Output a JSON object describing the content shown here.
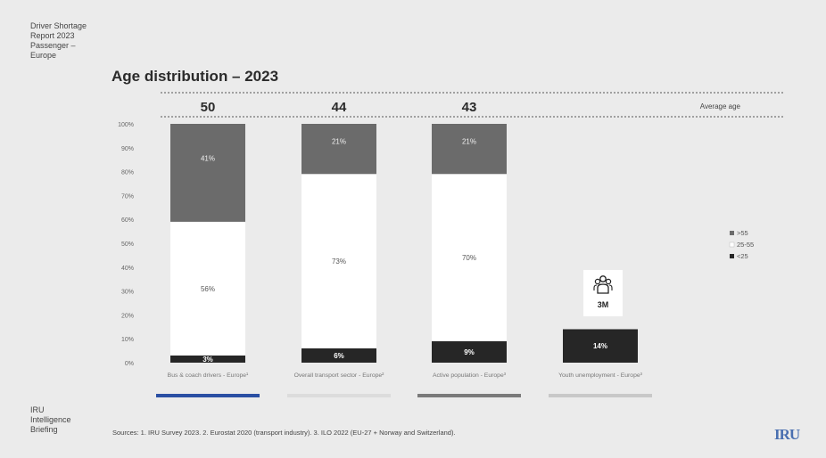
{
  "report": {
    "header_lines": [
      "Driver Shortage",
      "Report 2023",
      "Passenger –",
      "Europe"
    ],
    "footer_lines": [
      "IRU",
      "Intelligence",
      "Briefing"
    ],
    "sources": "Sources: 1. IRU Survey 2023. 2. Eurostat 2020 (transport industry). 3. ILO 2022 (EU-27 + Norway and Switzerland).",
    "logo_text": "IRU"
  },
  "youth_icon": {
    "name": "people-group-icon",
    "value": "3M"
  },
  "chart_data": {
    "type": "bar",
    "stacked": true,
    "title": "Age distribution – 2023",
    "ylabel": "",
    "ylim": [
      0,
      100
    ],
    "yticks": [
      "0%",
      "10%",
      "20%",
      "30%",
      "40%",
      "50%",
      "60%",
      "70%",
      "80%",
      "90%",
      "100%"
    ],
    "average_age_label": "Average age",
    "categories": [
      "Bus & coach drivers - Europe¹",
      "Overall transport sector - Europe²",
      "Active population - Europe³",
      "Youth unemployment - Europe³"
    ],
    "average_ages": [
      "50",
      "44",
      "43",
      ""
    ],
    "series": [
      {
        "name": "<25",
        "color": "#262626",
        "text_color": "#ffffff",
        "values": [
          3,
          6,
          9,
          14
        ],
        "labels": [
          "3%",
          "6%",
          "9%",
          "14%"
        ]
      },
      {
        "name": "25-55",
        "color": "#ffffff",
        "text_color": "#555555",
        "values": [
          56,
          73,
          70,
          null
        ],
        "labels": [
          "56%",
          "73%",
          "70%",
          ""
        ]
      },
      {
        "name": ">55",
        "color": "#6b6b6b",
        "text_color": "#f0f0f0",
        "values": [
          41,
          21,
          21,
          null
        ],
        "labels": [
          "41%",
          "21%",
          "21%",
          ""
        ]
      }
    ],
    "legend": {
      "placement": "right",
      "order": [
        ">55",
        "25-55",
        "<25"
      ]
    },
    "category_underline_colors": [
      "#2a4fa3",
      "#dcdcdc",
      "#7a7a7a",
      "#c8c8c8"
    ]
  }
}
